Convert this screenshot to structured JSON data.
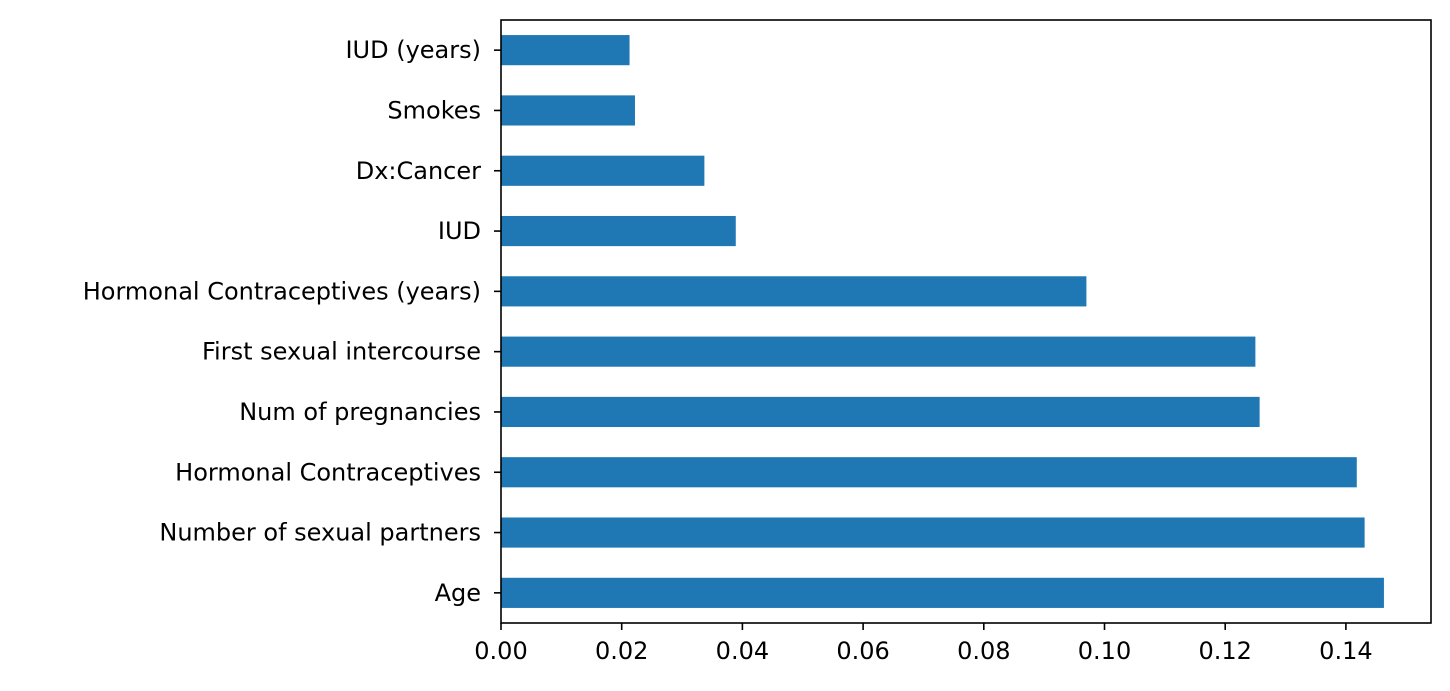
{
  "chart_data": {
    "type": "bar",
    "orientation": "horizontal",
    "categories": [
      "Age",
      "Number of sexual partners",
      "Hormonal Contraceptives",
      "Num of pregnancies",
      "First sexual intercourse",
      "Hormonal Contraceptives (years)",
      "IUD",
      "Dx:Cancer",
      "Smokes",
      "IUD (years)"
    ],
    "values": [
      0.1463,
      0.1431,
      0.1418,
      0.1257,
      0.125,
      0.097,
      0.0389,
      0.0337,
      0.0222,
      0.0213
    ],
    "title": "",
    "xlabel": "",
    "ylabel": "",
    "xlim": [
      0,
      0.1541
    ],
    "xticks": [
      0.0,
      0.02,
      0.04,
      0.06,
      0.08,
      0.1,
      0.12,
      0.14
    ],
    "xtick_labels": [
      "0.00",
      "0.02",
      "0.04",
      "0.06",
      "0.08",
      "0.10",
      "0.12",
      "0.14"
    ],
    "bar_color": "#1f77b4",
    "grid": false,
    "legend": false
  }
}
